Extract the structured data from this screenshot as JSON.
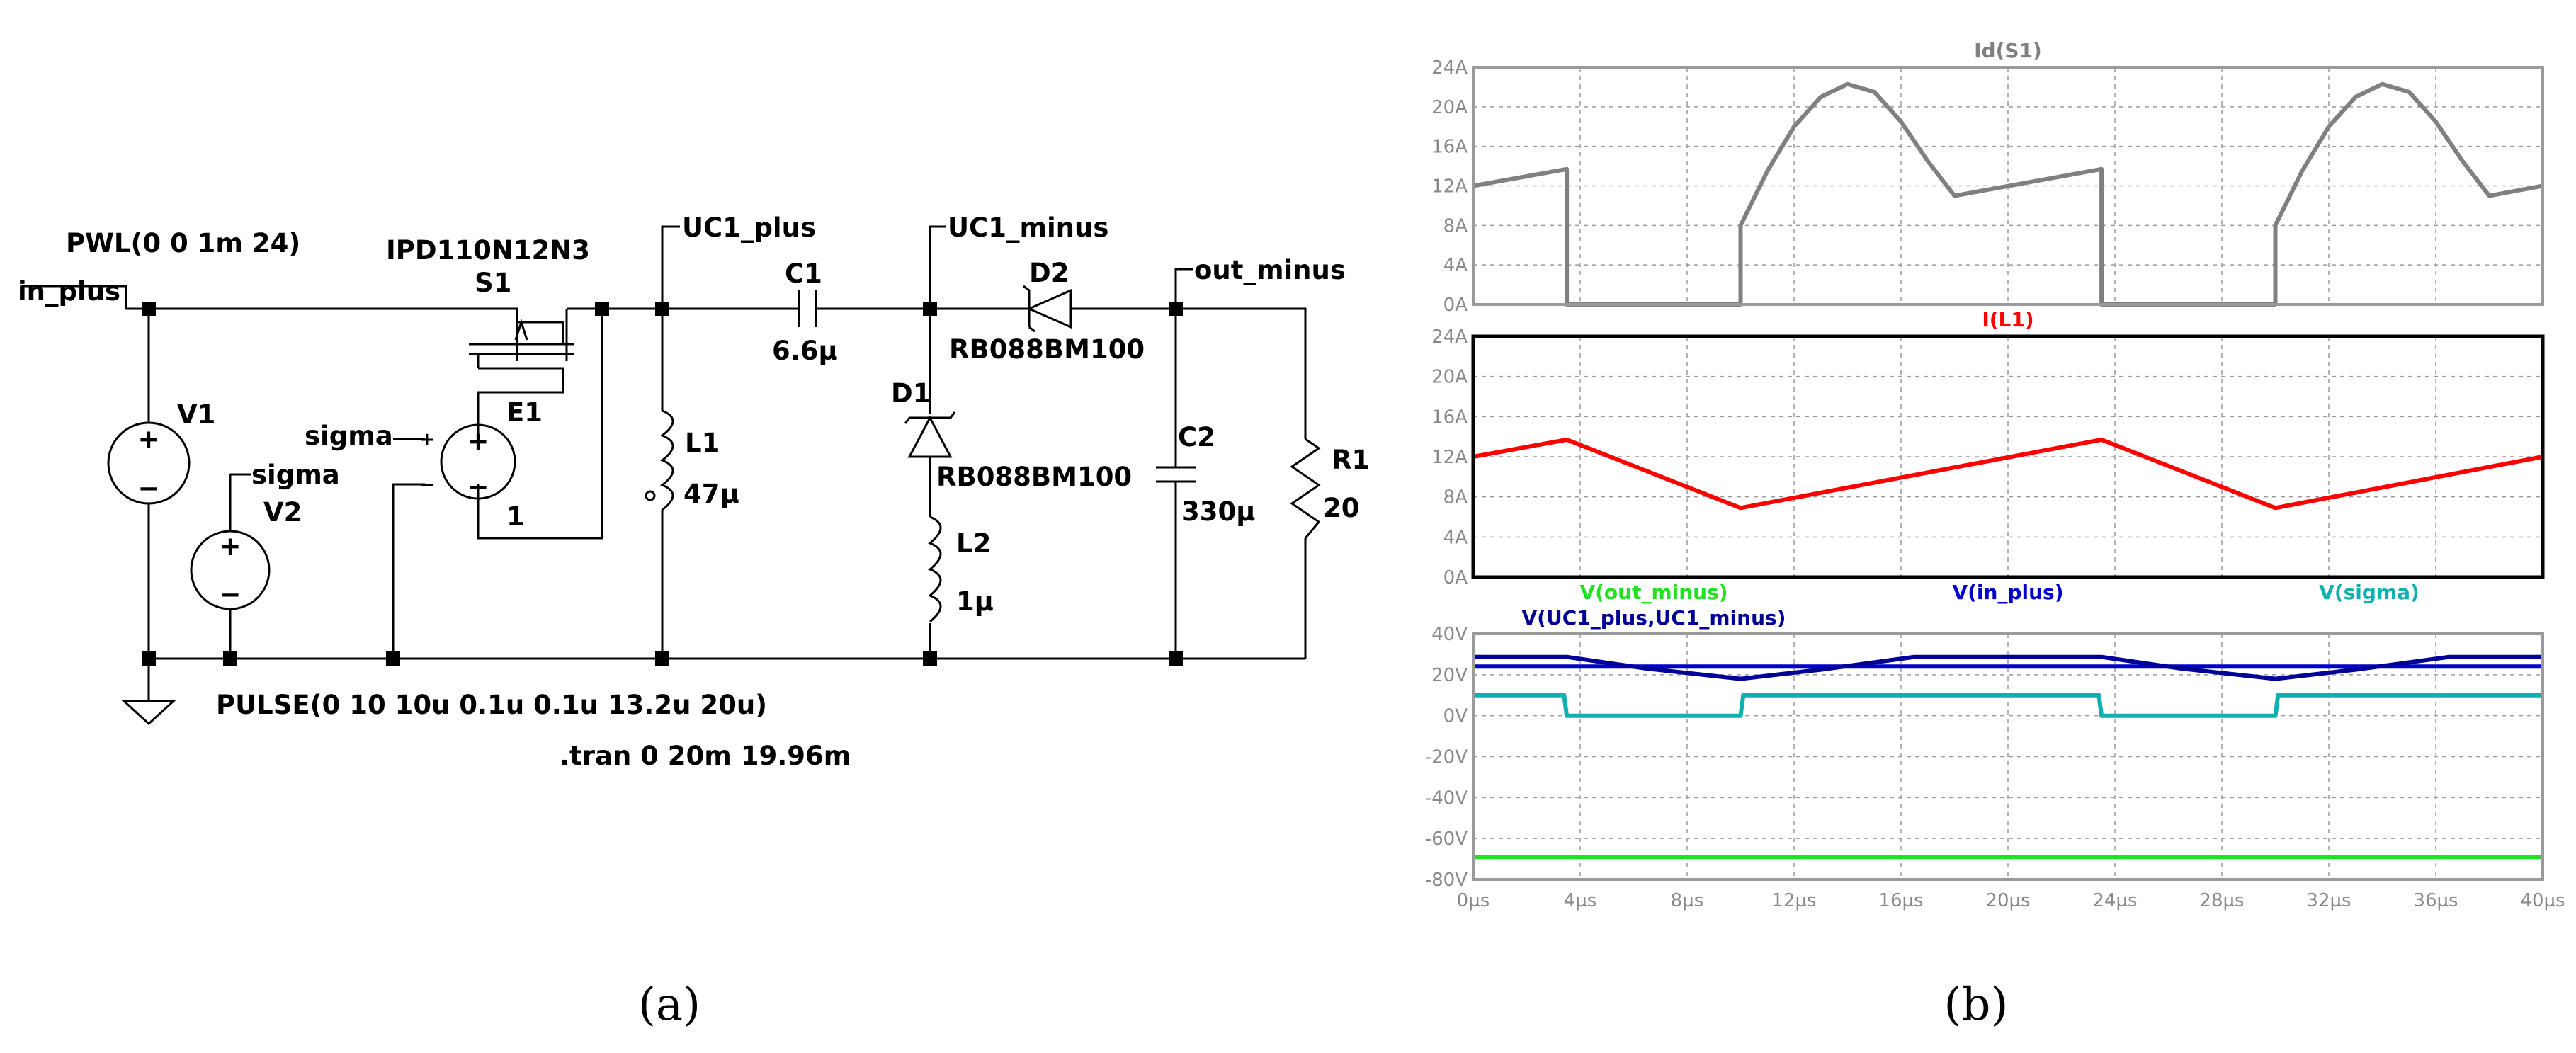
{
  "figure": {
    "caption_a": "(a)",
    "caption_b": "(b)"
  },
  "schematic": {
    "labels": {
      "pwl": "PWL(0 0 1m 24)",
      "in_plus": "in_plus",
      "mosfet_model": "IPD110N12N3",
      "s1": "S1",
      "uc1_plus": "UC1_plus",
      "uc1_minus": "UC1_minus",
      "c1": "C1",
      "c1_val": "6.6µ",
      "d2": "D2",
      "d2_model": "RB088BM100",
      "out_minus": "out_minus",
      "v1": "V1",
      "sigma_e1": "sigma",
      "e1": "E1",
      "e1_gain": "1",
      "sigma_v2": "sigma",
      "v2": "V2",
      "l1": "L1",
      "l1_val": "47µ",
      "d1": "D1",
      "d1_model": "RB088BM100",
      "c2": "C2",
      "c2_val": "330µ",
      "r1": "R1",
      "r1_val": "20",
      "l2": "L2",
      "l2_val": "1µ",
      "pulse": "PULSE(0 10 10u 0.1u 0.1u 13.2u 20u)",
      "tran": ".tran 0 20m 19.96m",
      "plus": "+",
      "minus": "−"
    }
  },
  "colors": {
    "id_s1": "#808080",
    "i_l1": "#ff0000",
    "v_out_minus": "#22e022",
    "v_in_plus": "#0000cc",
    "v_sigma": "#10b0b0",
    "v_uc1": "#000099",
    "grid": "#9a9a9a",
    "ticks": "#888888"
  },
  "chart_data": [
    {
      "type": "line",
      "title": "Id(S1)",
      "xlim": [
        0,
        40
      ],
      "ylim": [
        0,
        24
      ],
      "x_ticks": [
        "0µs",
        "4µs",
        "8µs",
        "12µs",
        "16µs",
        "20µs",
        "24µs",
        "28µs",
        "32µs",
        "36µs",
        "40µs"
      ],
      "y_ticks": [
        "24A",
        "20A",
        "16A",
        "12A",
        "8A",
        "4A",
        "0A"
      ],
      "grid": true,
      "series": [
        {
          "name": "Id(S1)",
          "color": "#808080",
          "x": [
            0,
            3.5,
            3.5,
            10,
            10,
            11,
            12,
            13,
            14,
            15,
            16,
            17,
            18,
            23.5,
            23.5,
            30,
            30,
            31,
            32,
            33,
            34,
            35,
            36,
            37,
            38,
            40
          ],
          "y": [
            12,
            13.7,
            0,
            0,
            8,
            13.5,
            18,
            21,
            22.3,
            21.5,
            18.5,
            14.5,
            11,
            13.7,
            0,
            0,
            8,
            13.5,
            18,
            21,
            22.3,
            21.5,
            18.5,
            14.5,
            11,
            12
          ]
        }
      ]
    },
    {
      "type": "line",
      "title": "I(L1)",
      "xlim": [
        0,
        40
      ],
      "ylim": [
        0,
        24
      ],
      "y_ticks": [
        "24A",
        "20A",
        "16A",
        "12A",
        "8A",
        "4A",
        "0A"
      ],
      "grid": true,
      "series": [
        {
          "name": "I(L1)",
          "color": "#ff0000",
          "x": [
            0,
            3.5,
            10,
            23.5,
            30,
            40
          ],
          "y": [
            12,
            13.7,
            6.9,
            13.7,
            6.9,
            12
          ]
        }
      ]
    },
    {
      "type": "line",
      "title_row1": [
        "V(out_minus)",
        "V(in_plus)",
        "V(sigma)"
      ],
      "title_row2": [
        "V(UC1_plus,UC1_minus)"
      ],
      "xlim": [
        0,
        40
      ],
      "ylim": [
        -80,
        40
      ],
      "x_ticks": [
        "0µs",
        "4µs",
        "8µs",
        "12µs",
        "16µs",
        "20µs",
        "24µs",
        "28µs",
        "32µs",
        "36µs",
        "40µs"
      ],
      "y_ticks": [
        "40V",
        "20V",
        "0V",
        "-20V",
        "-40V",
        "-60V",
        "-80V"
      ],
      "grid": true,
      "series": [
        {
          "name": "V(out_minus)",
          "color": "#22e022",
          "x": [
            0,
            40
          ],
          "y": [
            -69,
            -69
          ]
        },
        {
          "name": "V(in_plus)",
          "color": "#0000cc",
          "x": [
            0,
            40
          ],
          "y": [
            24,
            24
          ]
        },
        {
          "name": "V(sigma)",
          "color": "#10b0b0",
          "x": [
            0,
            3.4,
            3.5,
            10,
            10.1,
            23.4,
            23.5,
            30,
            30.1,
            40
          ],
          "y": [
            10,
            10,
            0,
            0,
            10,
            10,
            0,
            0,
            10,
            10
          ]
        },
        {
          "name": "V(UC1_plus,UC1_minus)",
          "color": "#000099",
          "x": [
            0,
            3.5,
            6.5,
            10,
            13,
            16.5,
            23.5,
            26.5,
            30,
            33,
            36.5,
            40
          ],
          "y": [
            28.7,
            28.7,
            23,
            18,
            22.5,
            28.7,
            28.7,
            23,
            18,
            22.5,
            28.7,
            28.7
          ]
        }
      ]
    }
  ]
}
